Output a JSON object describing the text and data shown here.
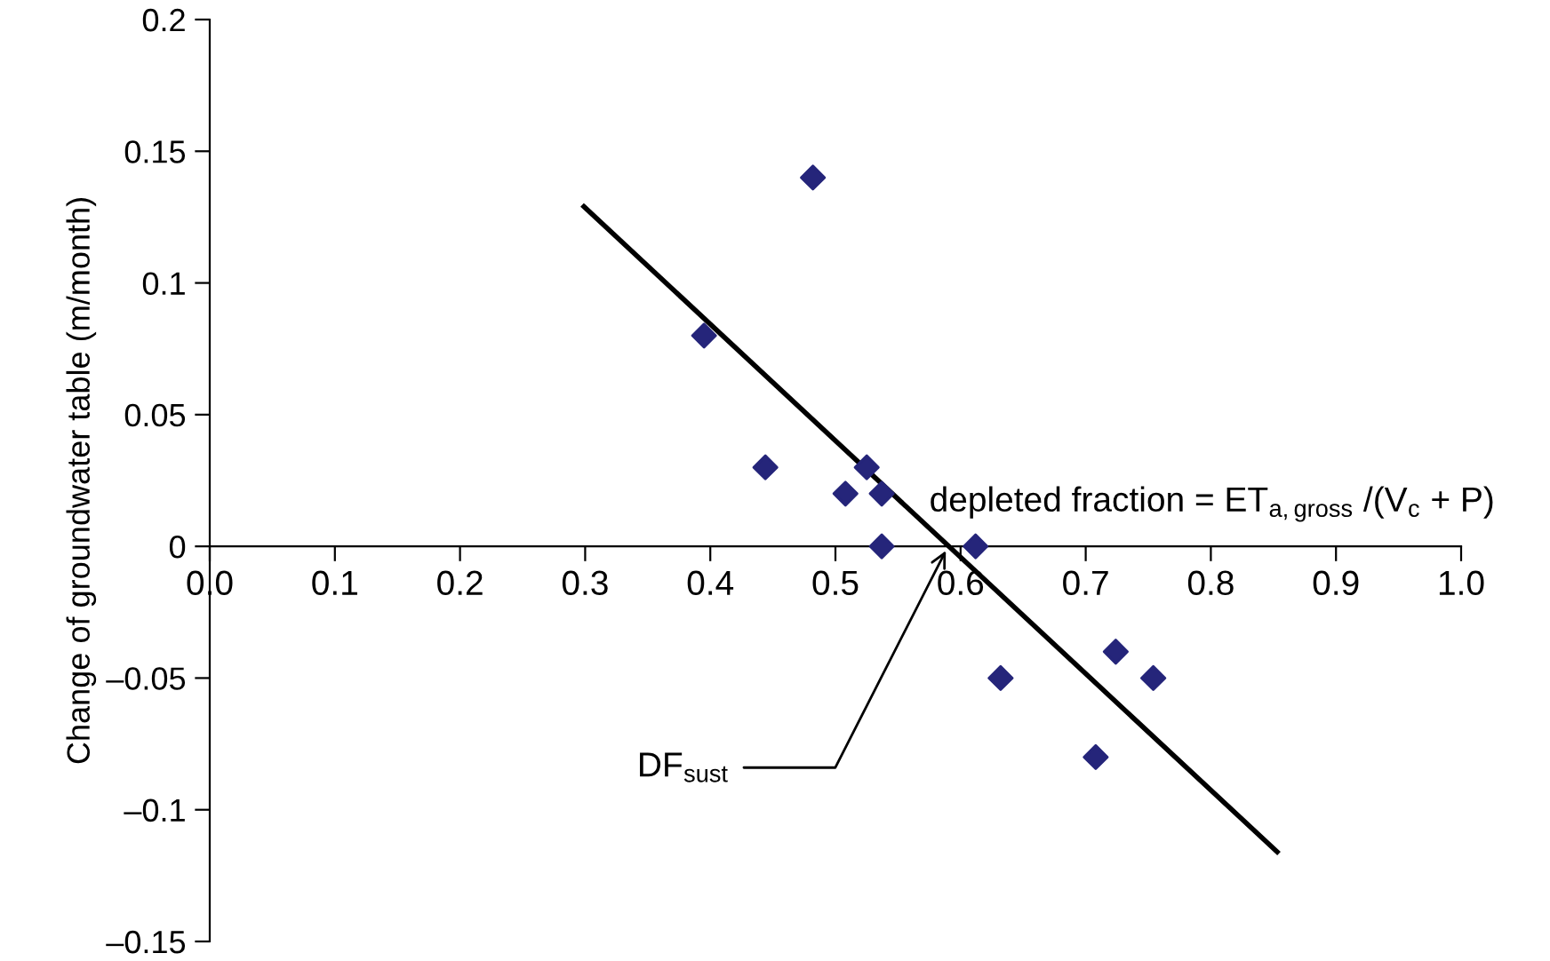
{
  "chart_data": {
    "type": "scatter",
    "ylabel": "Change of groundwater table (m/month)",
    "xlim": [
      0,
      1
    ],
    "ylim": [
      -0.15,
      0.2
    ],
    "xticks": [
      {
        "value": 0,
        "label": "0.0"
      },
      0.1,
      0.2,
      0.3,
      0.4,
      0.5,
      0.6,
      0.7,
      0.8,
      0.9,
      {
        "value": 1,
        "label": "1.0"
      }
    ],
    "yticks": [
      {
        "value": -0.15,
        "label": "–0.15"
      },
      {
        "value": -0.1,
        "label": "–0.1"
      },
      {
        "value": -0.05,
        "label": "–0.05"
      },
      0,
      0.05,
      0.1,
      0.15,
      0.2
    ],
    "grid": false,
    "legend": false,
    "marker": "diamond",
    "series": [
      {
        "color": "#25257a",
        "x": [
          0.482,
          0.395,
          0.444,
          0.508,
          0.525,
          0.537,
          0.537,
          0.612,
          0.632,
          0.724,
          0.754,
          0.708
        ],
        "values": [
          0.14,
          0.08,
          0.03,
          0.02,
          0.03,
          0.02,
          0,
          0,
          -0.05,
          -0.04,
          -0.05,
          -0.08
        ]
      },
      {
        "type": "line",
        "color": "#000000",
        "line_style": "solid",
        "marker": "none",
        "x": [
          0.299,
          0.853
        ],
        "values": [
          0.129,
          -0.116
        ]
      }
    ],
    "annotations": [
      "depleted fraction = ET$_{a,gross}$ /(V$_{c}$ + P)",
      {
        "text": "DF$_{sust}$",
        "x": 0.59,
        "y": 0
      }
    ]
  }
}
